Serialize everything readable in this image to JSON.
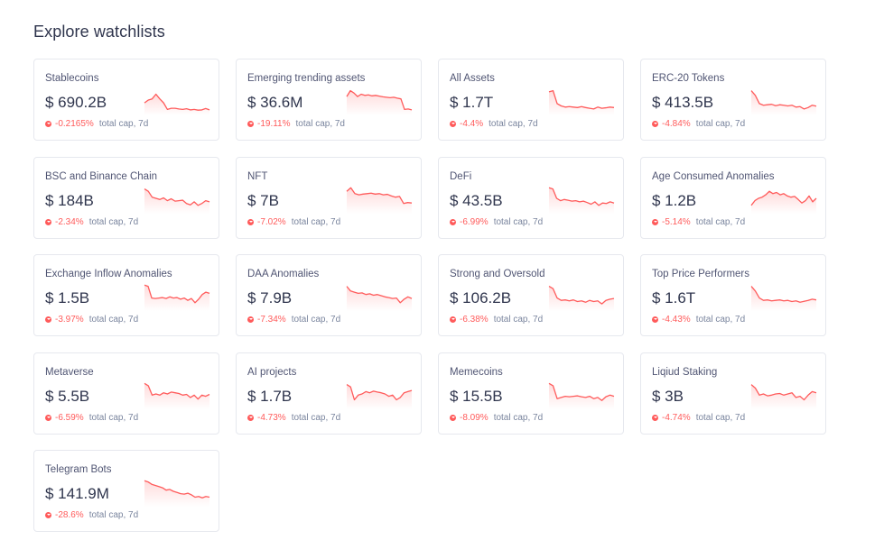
{
  "header": {
    "title": "Explore watchlists"
  },
  "colors": {
    "negative": "#ff5b5b",
    "card_border": "#e6e8ee",
    "text": "#2f354d",
    "muted": "#7a859e"
  },
  "watchlists": [
    {
      "title": "Stablecoins",
      "value": "$ 690.2B",
      "change": "-0.2165%",
      "change_label": "total cap, 7d",
      "trend": [
        0.62,
        0.5,
        0.45,
        0.25,
        0.45,
        0.62,
        0.9,
        0.85,
        0.85,
        0.88,
        0.9,
        0.87,
        0.92,
        0.9,
        0.93,
        0.92,
        0.86,
        0.92
      ]
    },
    {
      "title": "Emerging trending assets",
      "value": "$ 36.6M",
      "change": "-19.11%",
      "change_label": "total cap, 7d",
      "trend": [
        0.35,
        0.1,
        0.2,
        0.35,
        0.25,
        0.3,
        0.28,
        0.32,
        0.3,
        0.33,
        0.36,
        0.38,
        0.4,
        0.38,
        0.42,
        0.45,
        0.9,
        0.88,
        0.92
      ]
    },
    {
      "title": "All Assets",
      "value": "$ 1.7T",
      "change": "-4.4%",
      "change_label": "total cap, 7d",
      "trend": [
        0.15,
        0.1,
        0.65,
        0.75,
        0.8,
        0.78,
        0.8,
        0.82,
        0.78,
        0.82,
        0.85,
        0.88,
        0.8,
        0.85,
        0.83,
        0.8,
        0.82
      ]
    },
    {
      "title": "ERC-20 Tokens",
      "value": "$ 413.5B",
      "change": "-4.84%",
      "change_label": "total cap, 7d",
      "trend": [
        0.1,
        0.3,
        0.65,
        0.72,
        0.7,
        0.68,
        0.74,
        0.7,
        0.72,
        0.75,
        0.72,
        0.8,
        0.78,
        0.88,
        0.82,
        0.72,
        0.76
      ]
    },
    {
      "title": "BSC and Binance Chain",
      "value": "$ 184B",
      "change": "-2.34%",
      "change_label": "total cap, 7d",
      "trend": [
        0.1,
        0.2,
        0.45,
        0.5,
        0.55,
        0.48,
        0.6,
        0.52,
        0.62,
        0.6,
        0.58,
        0.72,
        0.78,
        0.65,
        0.8,
        0.72,
        0.6,
        0.65
      ]
    },
    {
      "title": "NFT",
      "value": "$ 7B",
      "change": "-7.02%",
      "change_label": "total cap, 7d",
      "trend": [
        0.2,
        0.05,
        0.3,
        0.35,
        0.32,
        0.3,
        0.28,
        0.32,
        0.3,
        0.35,
        0.33,
        0.4,
        0.45,
        0.42,
        0.72,
        0.68,
        0.7
      ]
    },
    {
      "title": "DeFi",
      "value": "$ 43.5B",
      "change": "-6.99%",
      "change_label": "total cap, 7d",
      "trend": [
        0.05,
        0.1,
        0.5,
        0.6,
        0.55,
        0.58,
        0.62,
        0.6,
        0.65,
        0.62,
        0.68,
        0.75,
        0.65,
        0.8,
        0.7,
        0.72,
        0.65,
        0.7
      ]
    },
    {
      "title": "Age Consumed Anomalies",
      "value": "$ 1.2B",
      "change": "-5.14%",
      "change_label": "total cap, 7d",
      "trend": [
        0.8,
        0.6,
        0.5,
        0.45,
        0.35,
        0.2,
        0.3,
        0.25,
        0.35,
        0.3,
        0.4,
        0.45,
        0.42,
        0.55,
        0.7,
        0.6,
        0.4,
        0.65,
        0.5
      ]
    },
    {
      "title": "Exchange Inflow Anomalies",
      "value": "$ 1.5B",
      "change": "-3.97%",
      "change_label": "total cap, 7d",
      "trend": [
        0.05,
        0.1,
        0.6,
        0.62,
        0.6,
        0.58,
        0.62,
        0.55,
        0.6,
        0.58,
        0.65,
        0.6,
        0.7,
        0.62,
        0.8,
        0.65,
        0.45,
        0.35,
        0.4
      ]
    },
    {
      "title": "DAA Anomalies",
      "value": "$ 7.9B",
      "change": "-7.34%",
      "change_label": "total cap, 7d",
      "trend": [
        0.1,
        0.3,
        0.35,
        0.4,
        0.38,
        0.45,
        0.42,
        0.48,
        0.45,
        0.5,
        0.55,
        0.58,
        0.62,
        0.6,
        0.8,
        0.65,
        0.55,
        0.62
      ]
    },
    {
      "title": "Strong and Oversold",
      "value": "$ 106.2B",
      "change": "-6.38%",
      "change_label": "total cap, 7d",
      "trend": [
        0.1,
        0.2,
        0.6,
        0.7,
        0.68,
        0.72,
        0.68,
        0.75,
        0.72,
        0.78,
        0.7,
        0.75,
        0.72,
        0.85,
        0.7,
        0.65,
        0.62
      ]
    },
    {
      "title": "Top Price Performers",
      "value": "$ 1.6T",
      "change": "-4.43%",
      "change_label": "total cap, 7d",
      "trend": [
        0.1,
        0.3,
        0.6,
        0.7,
        0.68,
        0.72,
        0.7,
        0.68,
        0.72,
        0.7,
        0.75,
        0.72,
        0.78,
        0.74,
        0.7,
        0.65,
        0.68
      ]
    },
    {
      "title": "Metaverse",
      "value": "$ 5.5B",
      "change": "-6.59%",
      "change_label": "total cap, 7d",
      "trend": [
        0.05,
        0.15,
        0.55,
        0.5,
        0.55,
        0.45,
        0.5,
        0.42,
        0.45,
        0.48,
        0.55,
        0.52,
        0.65,
        0.55,
        0.72,
        0.55,
        0.6,
        0.52
      ]
    },
    {
      "title": "AI projects",
      "value": "$ 1.7B",
      "change": "-4.73%",
      "change_label": "total cap, 7d",
      "trend": [
        0.1,
        0.2,
        0.75,
        0.55,
        0.5,
        0.4,
        0.45,
        0.38,
        0.42,
        0.45,
        0.5,
        0.6,
        0.55,
        0.75,
        0.65,
        0.45,
        0.4,
        0.35
      ]
    },
    {
      "title": "Memecoins",
      "value": "$ 15.5B",
      "change": "-8.09%",
      "change_label": "total cap, 7d",
      "trend": [
        0.05,
        0.15,
        0.7,
        0.65,
        0.6,
        0.62,
        0.6,
        0.58,
        0.62,
        0.65,
        0.6,
        0.7,
        0.65,
        0.78,
        0.62,
        0.55,
        0.6
      ]
    },
    {
      "title": "Liqiud Staking",
      "value": "$ 3B",
      "change": "-4.74%",
      "change_label": "total cap, 7d",
      "trend": [
        0.1,
        0.25,
        0.55,
        0.5,
        0.58,
        0.55,
        0.5,
        0.48,
        0.55,
        0.5,
        0.45,
        0.65,
        0.6,
        0.75,
        0.55,
        0.4,
        0.45
      ]
    },
    {
      "title": "Telegram Bots",
      "value": "$ 141.9M",
      "change": "-28.6%",
      "change_label": "total cap, 7d",
      "trend": [
        0.05,
        0.1,
        0.2,
        0.25,
        0.3,
        0.35,
        0.45,
        0.42,
        0.5,
        0.55,
        0.6,
        0.62,
        0.58,
        0.65,
        0.75,
        0.72,
        0.78,
        0.72,
        0.75
      ]
    }
  ]
}
